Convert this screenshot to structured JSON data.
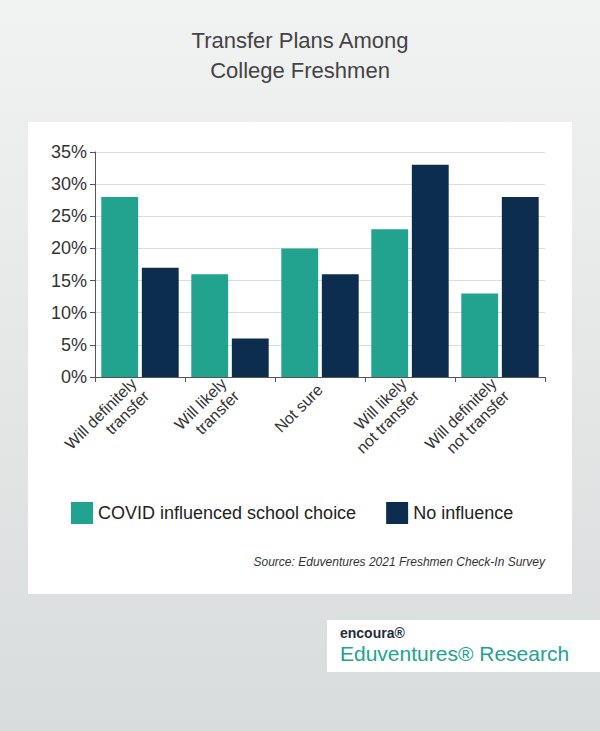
{
  "chart_data": {
    "type": "bar",
    "title": "Transfer Plans Among\nCollege Freshmen",
    "categories": [
      "Will definitely\ntransfer",
      "Will likely\ntransfer",
      "Not sure",
      "Will likely\nnot transfer",
      "Will definitely\nnot transfer"
    ],
    "series": [
      {
        "name": "COVID influenced school choice",
        "color": "#21a38f",
        "values": [
          28,
          16,
          20,
          23,
          13
        ]
      },
      {
        "name": "No influence",
        "color": "#0d2d4f",
        "values": [
          17,
          6,
          16,
          33,
          28
        ]
      }
    ],
    "ylim": [
      0,
      35
    ],
    "yticks": [
      {
        "value": 0,
        "label": "0%"
      },
      {
        "value": 5,
        "label": "5%"
      },
      {
        "value": 10,
        "label": "10%"
      },
      {
        "value": 15,
        "label": "15%"
      },
      {
        "value": 20,
        "label": "20%"
      },
      {
        "value": 25,
        "label": "25%"
      },
      {
        "value": 30,
        "label": "30%"
      },
      {
        "value": 35,
        "label": "35%"
      }
    ],
    "grid": true,
    "legend": "bottom",
    "source": "Source: Eduventures 2021 Freshmen Check-In Survey",
    "brand": [
      "encoura®",
      "Eduventures® Research"
    ]
  }
}
